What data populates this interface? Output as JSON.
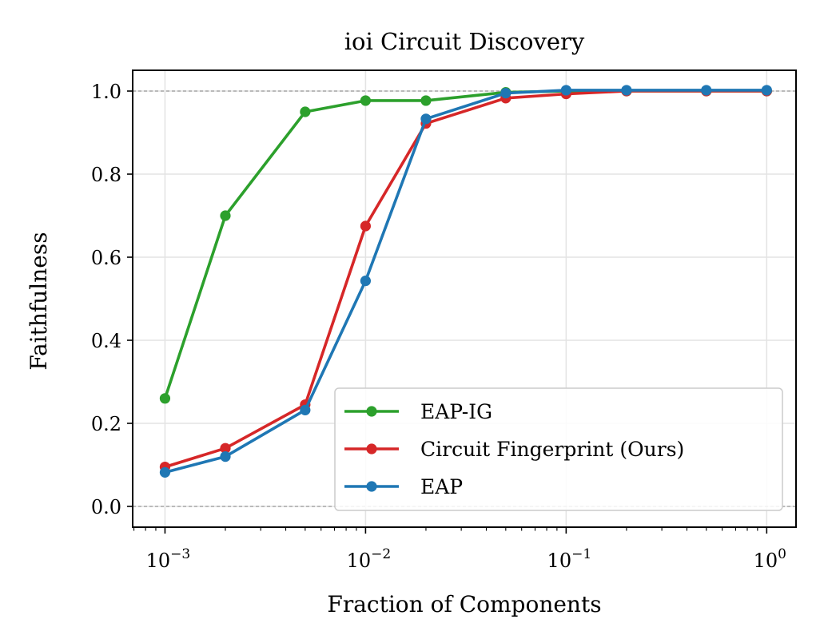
{
  "chart_data": {
    "type": "line",
    "title": "ioi Circuit Discovery",
    "xlabel": "Fraction of Components",
    "ylabel": "Faithfulness",
    "xscale": "log",
    "xlim": [
      0.00069,
      1.4
    ],
    "ylim": [
      -0.05,
      1.05
    ],
    "x_ticks": [
      {
        "value": 0.001,
        "base": "10",
        "exp": "−3"
      },
      {
        "value": 0.01,
        "base": "10",
        "exp": "−2"
      },
      {
        "value": 0.1,
        "base": "10",
        "exp": "−1"
      },
      {
        "value": 1,
        "base": "10",
        "exp": "0"
      }
    ],
    "y_ticks": [
      {
        "value": 0.0,
        "label": "0.0"
      },
      {
        "value": 0.2,
        "label": "0.2"
      },
      {
        "value": 0.4,
        "label": "0.4"
      },
      {
        "value": 0.6,
        "label": "0.6"
      },
      {
        "value": 0.8,
        "label": "0.8"
      },
      {
        "value": 1.0,
        "label": "1.0"
      }
    ],
    "grid": true,
    "reference_lines": [
      0.0,
      1.0
    ],
    "legend_position": "lower-right",
    "x": [
      0.001,
      0.002,
      0.005,
      0.01,
      0.02,
      0.05,
      0.1,
      0.2,
      0.5,
      1.0
    ],
    "series": [
      {
        "name": "EAP-IG",
        "color": "#2ca02c",
        "values": [
          0.26,
          0.7,
          0.95,
          0.977,
          0.977,
          0.997,
          1.0,
          1.0,
          1.0,
          1.0
        ]
      },
      {
        "name": "Circuit Fingerprint (Ours)",
        "color": "#d62728",
        "values": [
          0.095,
          0.14,
          0.245,
          0.675,
          0.922,
          0.983,
          0.993,
          1.0,
          1.0,
          1.0
        ]
      },
      {
        "name": "EAP",
        "color": "#1f77b4",
        "values": [
          0.082,
          0.12,
          0.232,
          0.543,
          0.933,
          0.995,
          1.002,
          1.002,
          1.002,
          1.002
        ]
      }
    ]
  }
}
